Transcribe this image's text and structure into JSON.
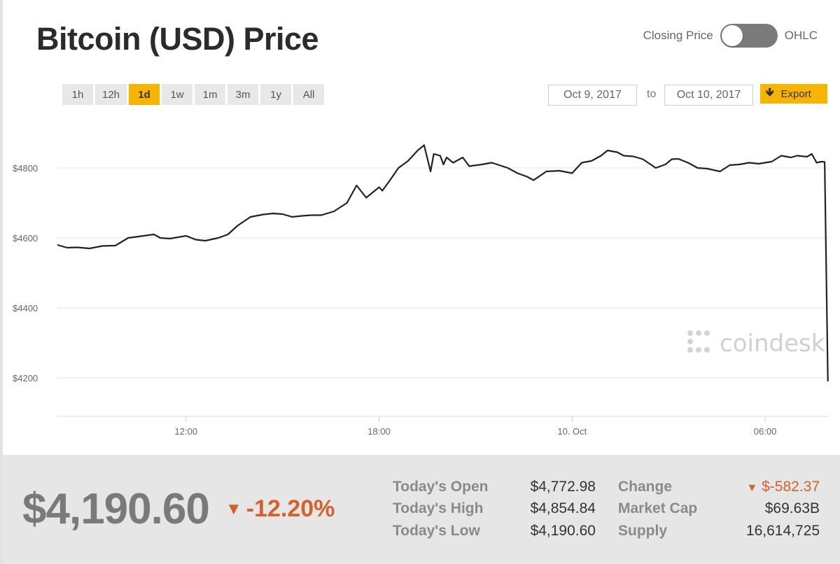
{
  "title": "Bitcoin (USD) Price",
  "toggle": {
    "left_label": "Closing Price",
    "right_label": "OHLC"
  },
  "ranges": [
    {
      "label": "1h",
      "active": false
    },
    {
      "label": "12h",
      "active": false
    },
    {
      "label": "1d",
      "active": true
    },
    {
      "label": "1w",
      "active": false
    },
    {
      "label": "1m",
      "active": false
    },
    {
      "label": "3m",
      "active": false
    },
    {
      "label": "1y",
      "active": false
    },
    {
      "label": "All",
      "active": false
    }
  ],
  "date_from": "Oct 9, 2017",
  "date_to_label": "to",
  "date_to": "Oct 10, 2017",
  "export_label": "Export",
  "colors": {
    "accent": "#f7b500",
    "negative": "#d4622a",
    "line": "#222222"
  },
  "chart_data": {
    "type": "line",
    "x_unit": "hours after Oct 9, 2017 00:00",
    "xlim": [
      8.0,
      32.0
    ],
    "ylim": [
      4090,
      4940
    ],
    "y_ticks": [
      4200,
      4400,
      4600,
      4800
    ],
    "y_tick_labels": [
      "$4200",
      "$4400",
      "$4600",
      "$4800"
    ],
    "x_ticks": [
      12,
      18,
      24,
      30
    ],
    "x_tick_labels": [
      "12:00",
      "18:00",
      "10. Oct",
      "06:00"
    ],
    "watermark": "coindesk",
    "series": [
      {
        "x": [
          8.0,
          8.3,
          8.6,
          9.0,
          9.4,
          9.8,
          10.2,
          10.6,
          11.0,
          11.2,
          11.5,
          12.0,
          12.3,
          12.6,
          13.0,
          13.3,
          13.6,
          14.0,
          14.4,
          14.7,
          15.0,
          15.3,
          15.6,
          15.9,
          16.2,
          16.6,
          17.0,
          17.3,
          17.6,
          18.0,
          18.1,
          18.3,
          18.6,
          18.9,
          19.2,
          19.4,
          19.6,
          19.7,
          19.9,
          20.0,
          20.1,
          20.3,
          20.6,
          20.8,
          21.2,
          21.5,
          22.0,
          22.3,
          22.6,
          22.8,
          23.2,
          23.6,
          24.0,
          24.3,
          24.6,
          24.9,
          25.1,
          25.4,
          25.6,
          25.9,
          26.2,
          26.6,
          26.9,
          27.1,
          27.3,
          27.6,
          27.9,
          28.2,
          28.6,
          28.9,
          29.2,
          29.5,
          29.8,
          30.0,
          30.2,
          30.5,
          30.8,
          31.0,
          31.3,
          31.45,
          31.6,
          31.75,
          31.85,
          31.95
        ],
        "y": [
          4580,
          4572,
          4573,
          4570,
          4577,
          4578,
          4600,
          4605,
          4610,
          4600,
          4598,
          4606,
          4595,
          4592,
          4600,
          4610,
          4635,
          4660,
          4667,
          4670,
          4668,
          4660,
          4663,
          4665,
          4665,
          4676,
          4700,
          4750,
          4715,
          4745,
          4735,
          4760,
          4800,
          4820,
          4850,
          4865,
          4790,
          4840,
          4835,
          4810,
          4830,
          4815,
          4830,
          4805,
          4810,
          4815,
          4800,
          4785,
          4775,
          4765,
          4790,
          4792,
          4785,
          4815,
          4820,
          4835,
          4850,
          4845,
          4835,
          4833,
          4825,
          4800,
          4810,
          4825,
          4826,
          4815,
          4800,
          4798,
          4790,
          4808,
          4810,
          4815,
          4812,
          4815,
          4818,
          4835,
          4830,
          4835,
          4832,
          4840,
          4815,
          4818,
          4817,
          4190
        ]
      }
    ]
  },
  "summary": {
    "price": "$4,190.60",
    "change_pct": "-12.20%",
    "change_arrow": "▼",
    "stats_left": [
      {
        "label": "Today's Open",
        "value": "$4,772.98"
      },
      {
        "label": "Today's High",
        "value": "$4,854.84"
      },
      {
        "label": "Today's Low",
        "value": "$4,190.60"
      }
    ],
    "stats_right": [
      {
        "label": "Change",
        "value": "$-582.37",
        "arrow": "▼"
      },
      {
        "label": "Market Cap",
        "value": "$69.63B"
      },
      {
        "label": "Supply",
        "value": "16,614,725"
      }
    ]
  }
}
